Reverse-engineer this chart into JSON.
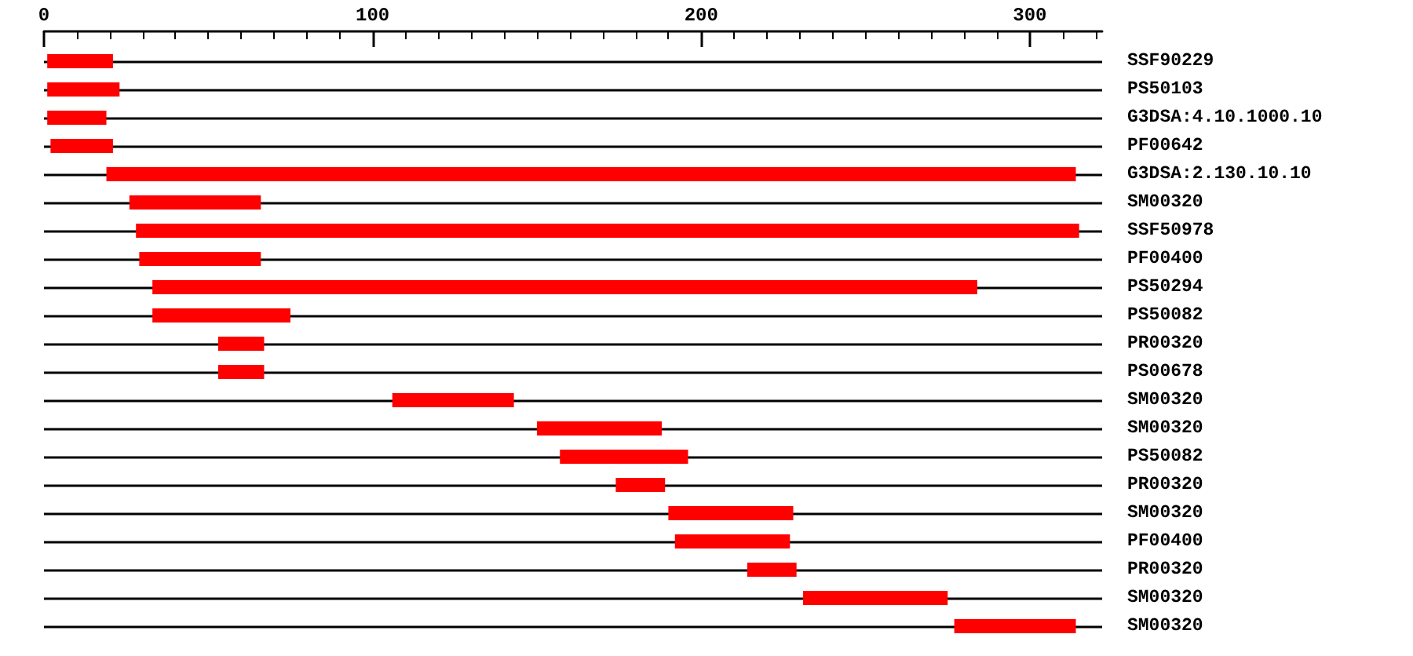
{
  "chart_data": {
    "type": "bar",
    "orientation": "horizontal",
    "color": "#ff0000",
    "grid": "y",
    "categories": [
      "SSF90229",
      "PS50103",
      "G3DSA:4.10.1000.10",
      "PF00642",
      "G3DSA:2.130.10.10",
      "SM00320",
      "SSF50978",
      "PF00400",
      "PS50294",
      "PS50082",
      "PR00320",
      "PS00678",
      "SM00320",
      "SM00320",
      "PS50082",
      "PR00320",
      "SM00320",
      "PF00400",
      "PR00320",
      "SM00320",
      "SM00320"
    ],
    "base": [
      1,
      1,
      1,
      2,
      19,
      26,
      28,
      29,
      33,
      33,
      53,
      53,
      106,
      150,
      157,
      174,
      190,
      192,
      214,
      231,
      277
    ],
    "values": [
      20,
      22,
      18,
      19,
      295,
      40,
      287,
      37,
      251,
      42,
      14,
      14,
      37,
      38,
      39,
      15,
      38,
      35,
      15,
      44,
      37
    ],
    "xlim": [
      0,
      322
    ],
    "xticks": [
      0,
      100,
      200,
      300
    ]
  }
}
